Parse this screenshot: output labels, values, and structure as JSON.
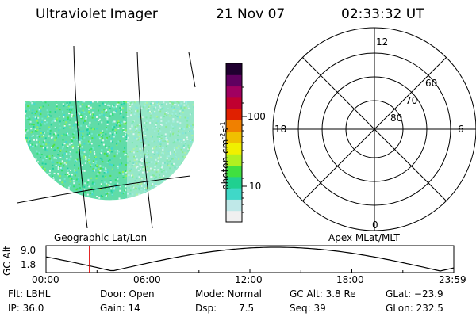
{
  "header": {
    "instrument": "Ultraviolet Imager",
    "date": "21 Nov 07",
    "time": "02:33:32 UT"
  },
  "image_panel": {
    "label": "Geographic Lat/Lon"
  },
  "colorbar": {
    "unit_label": "photon cm",
    "unit_sup1": "-2",
    "unit_s": "s",
    "unit_sup2": "-1",
    "tick_labels": [
      "10",
      "100"
    ],
    "colors": [
      "#f0f0f0",
      "#bfe8e8",
      "#40d8c8",
      "#20d090",
      "#40e040",
      "#b0f020",
      "#f0f000",
      "#f0c000",
      "#f08000",
      "#e02000",
      "#c00030",
      "#a00060",
      "#600060",
      "#200030"
    ]
  },
  "polar_plot": {
    "label": "Apex MLat/MLT",
    "mlt_labels": {
      "top": "12",
      "left": "18",
      "right": "6",
      "bottom": "0"
    },
    "lat_labels": [
      "60",
      "70",
      "80"
    ]
  },
  "altitude_plot": {
    "ylabel": "GC Alt",
    "ytick_labels": [
      "9.0",
      "1.8"
    ],
    "xtick_labels": [
      "00:00",
      "06:00",
      "12:00",
      "18:00",
      "23:59"
    ],
    "current_time_hours": 2.56,
    "marker_color": "#e00000"
  },
  "status": {
    "filter": "Flt: LBHL",
    "ip": "IP: 36.0",
    "door": "Door: Open",
    "gain": "Gain: 14",
    "mode": "Mode: Normal",
    "dsp_label": "Dsp:",
    "dsp_value": "7.5",
    "gc_alt": "GC Alt: 3.8 Re",
    "seq": "Seq: 39",
    "glat": "GLat: −23.9",
    "glon": "GLon: 232.5"
  }
}
